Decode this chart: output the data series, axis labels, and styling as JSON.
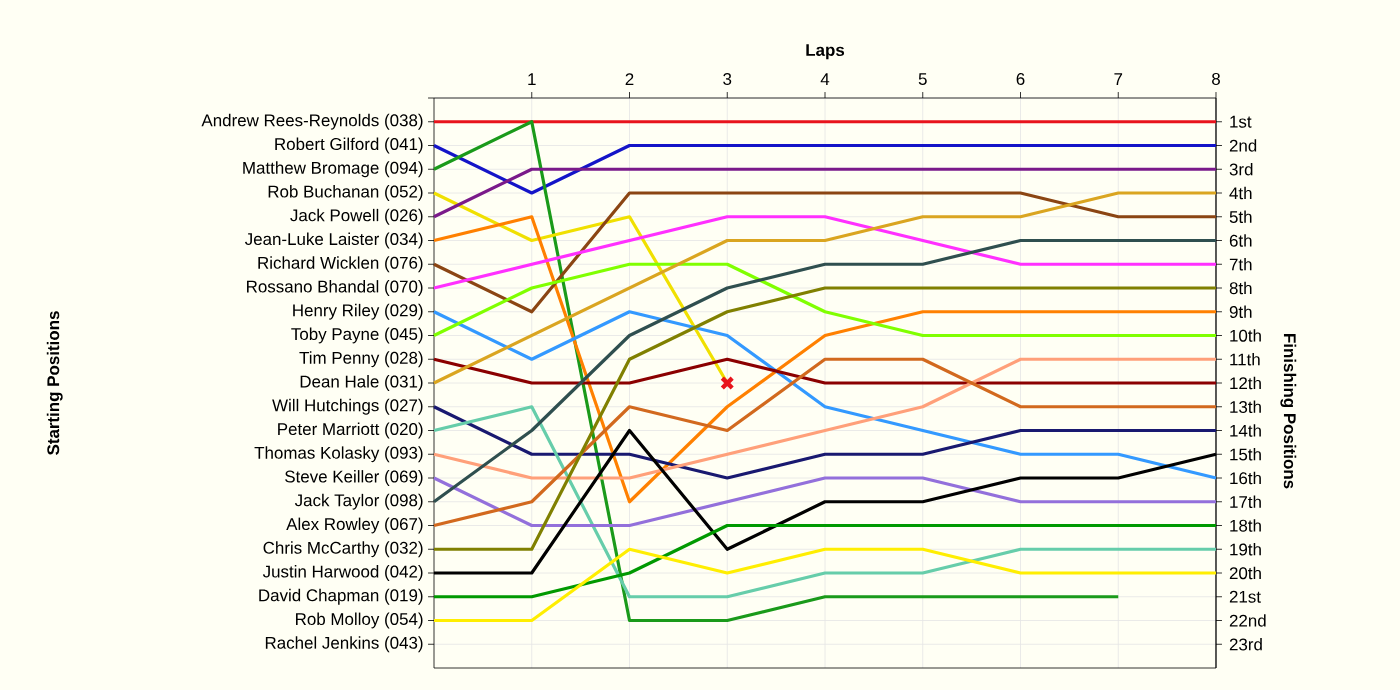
{
  "chart_data": {
    "type": "line",
    "xlabel": "Laps",
    "y2label": "Finishing Positions",
    "x": [
      0,
      1,
      2,
      3,
      4,
      5,
      6,
      7,
      8
    ],
    "xlim": [
      0,
      8
    ],
    "xticks": [
      1,
      2,
      3,
      4,
      5,
      6,
      7,
      8
    ],
    "annotations": [
      "Starting Positions",
      "Andrew Rees-Reynolds (038)",
      "Robert Gilford (041)",
      "Matthew Bromage (094)",
      "Rob Buchanan (052)",
      "Jack Powell (026)",
      "Jean-Luke Laister (034)",
      "Richard Wicklen (076)",
      "Rossano Bhandal (070)",
      "Henry Riley (029)",
      "Toby Payne (045)",
      "Tim Penny (028)",
      "Dean Hale (031)",
      "Will Hutchings (027)",
      "Peter Marriott (020)",
      "Thomas Kolasky (093)",
      "Steve Keiller (069)",
      "Jack Taylor (098)",
      "Alex Rowley (067)",
      "Chris McCarthy (032)",
      "Justin Harwood (042)",
      "David Chapman (019)",
      "Rob Molloy (054)",
      "Rachel Jenkins (043)"
    ],
    "y2lim": [
      24,
      0
    ],
    "y2ticks": [
      {
        "value": 1,
        "label": "1st"
      },
      {
        "value": 2,
        "label": "2nd"
      },
      {
        "value": 3,
        "label": "3rd"
      },
      {
        "value": 4,
        "label": "4th"
      },
      {
        "value": 5,
        "label": "5th"
      },
      {
        "value": 6,
        "label": "6th"
      },
      {
        "value": 7,
        "label": "7th"
      },
      {
        "value": 8,
        "label": "8th"
      },
      {
        "value": 9,
        "label": "9th"
      },
      {
        "value": 10,
        "label": "10th"
      },
      {
        "value": 11,
        "label": "11th"
      },
      {
        "value": 12,
        "label": "12th"
      },
      {
        "value": 13,
        "label": "13th"
      },
      {
        "value": 14,
        "label": "14th"
      },
      {
        "value": 15,
        "label": "15th"
      },
      {
        "value": 16,
        "label": "16th"
      },
      {
        "value": 17,
        "label": "17th"
      },
      {
        "value": 18,
        "label": "18th"
      },
      {
        "value": 19,
        "label": "19th"
      },
      {
        "value": 20,
        "label": "20th"
      },
      {
        "value": 21,
        "label": "21st"
      },
      {
        "value": 22,
        "label": "22nd"
      },
      {
        "value": 23,
        "label": "23rd"
      }
    ],
    "grid": true,
    "marker": "none",
    "line_style": "solid",
    "series": [
      {
        "axis": "y2",
        "color": "#e8141c",
        "values": [
          1,
          1,
          1,
          1,
          1,
          1,
          1,
          1,
          1
        ]
      },
      {
        "axis": "y2",
        "color": "#1414c8",
        "values": [
          2,
          4,
          2,
          2,
          2,
          2,
          2,
          2,
          2
        ]
      },
      {
        "axis": "y2",
        "color": "#1a9a1a",
        "values": [
          3,
          1,
          22,
          22,
          21,
          21,
          21,
          21,
          null
        ]
      },
      {
        "axis": "y2",
        "color": "#f0e000",
        "values": [
          4,
          6,
          5,
          12,
          null,
          null,
          null,
          null,
          null
        ]
      },
      {
        "axis": "y2",
        "color": "#7a1a8a",
        "values": [
          5,
          3,
          3,
          3,
          3,
          3,
          3,
          3,
          3
        ]
      },
      {
        "axis": "y2",
        "color": "#ff8000",
        "values": [
          6,
          5,
          17,
          13,
          10,
          9,
          9,
          9,
          9
        ]
      },
      {
        "axis": "y2",
        "color": "#8b4513",
        "values": [
          7,
          9,
          4,
          4,
          4,
          4,
          4,
          5,
          5
        ]
      },
      {
        "axis": "y2",
        "color": "#ff30ff",
        "values": [
          8,
          7,
          6,
          5,
          5,
          6,
          7,
          7,
          7
        ]
      },
      {
        "axis": "y2",
        "color": "#3399ff",
        "values": [
          9,
          11,
          9,
          10,
          13,
          14,
          15,
          15,
          16
        ]
      },
      {
        "axis": "y2",
        "color": "#80ff00",
        "values": [
          10,
          8,
          7,
          7,
          9,
          10,
          10,
          10,
          10
        ]
      },
      {
        "axis": "y2",
        "color": "#8b0000",
        "values": [
          11,
          12,
          12,
          11,
          12,
          12,
          12,
          12,
          12
        ]
      },
      {
        "axis": "y2",
        "color": "#daa520",
        "values": [
          12,
          10,
          8,
          6,
          6,
          5,
          5,
          4,
          4
        ]
      },
      {
        "axis": "y2",
        "color": "#191970",
        "values": [
          13,
          15,
          15,
          16,
          15,
          15,
          14,
          14,
          14
        ]
      },
      {
        "axis": "y2",
        "color": "#66cdaa",
        "values": [
          14,
          13,
          21,
          21,
          20,
          20,
          19,
          19,
          19
        ]
      },
      {
        "axis": "y2",
        "color": "#ffa07a",
        "values": [
          15,
          16,
          16,
          15,
          14,
          13,
          11,
          11,
          11
        ]
      },
      {
        "axis": "y2",
        "color": "#9370db",
        "values": [
          16,
          18,
          18,
          17,
          16,
          16,
          17,
          17,
          17
        ]
      },
      {
        "axis": "y2",
        "color": "#2f4f4f",
        "values": [
          17,
          14,
          10,
          8,
          7,
          7,
          6,
          6,
          6
        ]
      },
      {
        "axis": "y2",
        "color": "#d2691e",
        "values": [
          18,
          17,
          13,
          14,
          11,
          11,
          13,
          13,
          13
        ]
      },
      {
        "axis": "y2",
        "color": "#808000",
        "values": [
          19,
          19,
          11,
          9,
          8,
          8,
          8,
          8,
          8
        ]
      },
      {
        "axis": "y2",
        "color": "#000000",
        "values": [
          20,
          20,
          14,
          19,
          17,
          17,
          16,
          16,
          15
        ]
      },
      {
        "axis": "y2",
        "color": "#009900",
        "values": [
          21,
          21,
          20,
          18,
          18,
          18,
          18,
          18,
          18
        ]
      },
      {
        "axis": "y2",
        "color": "#ffee00",
        "values": [
          22,
          22,
          19,
          20,
          19,
          19,
          20,
          20,
          20
        ]
      },
      {
        "axis": "y2",
        "type": "scatter",
        "marker": "cross",
        "color": "#e8141c",
        "x": [
          3
        ],
        "values": [
          12
        ]
      }
    ]
  }
}
